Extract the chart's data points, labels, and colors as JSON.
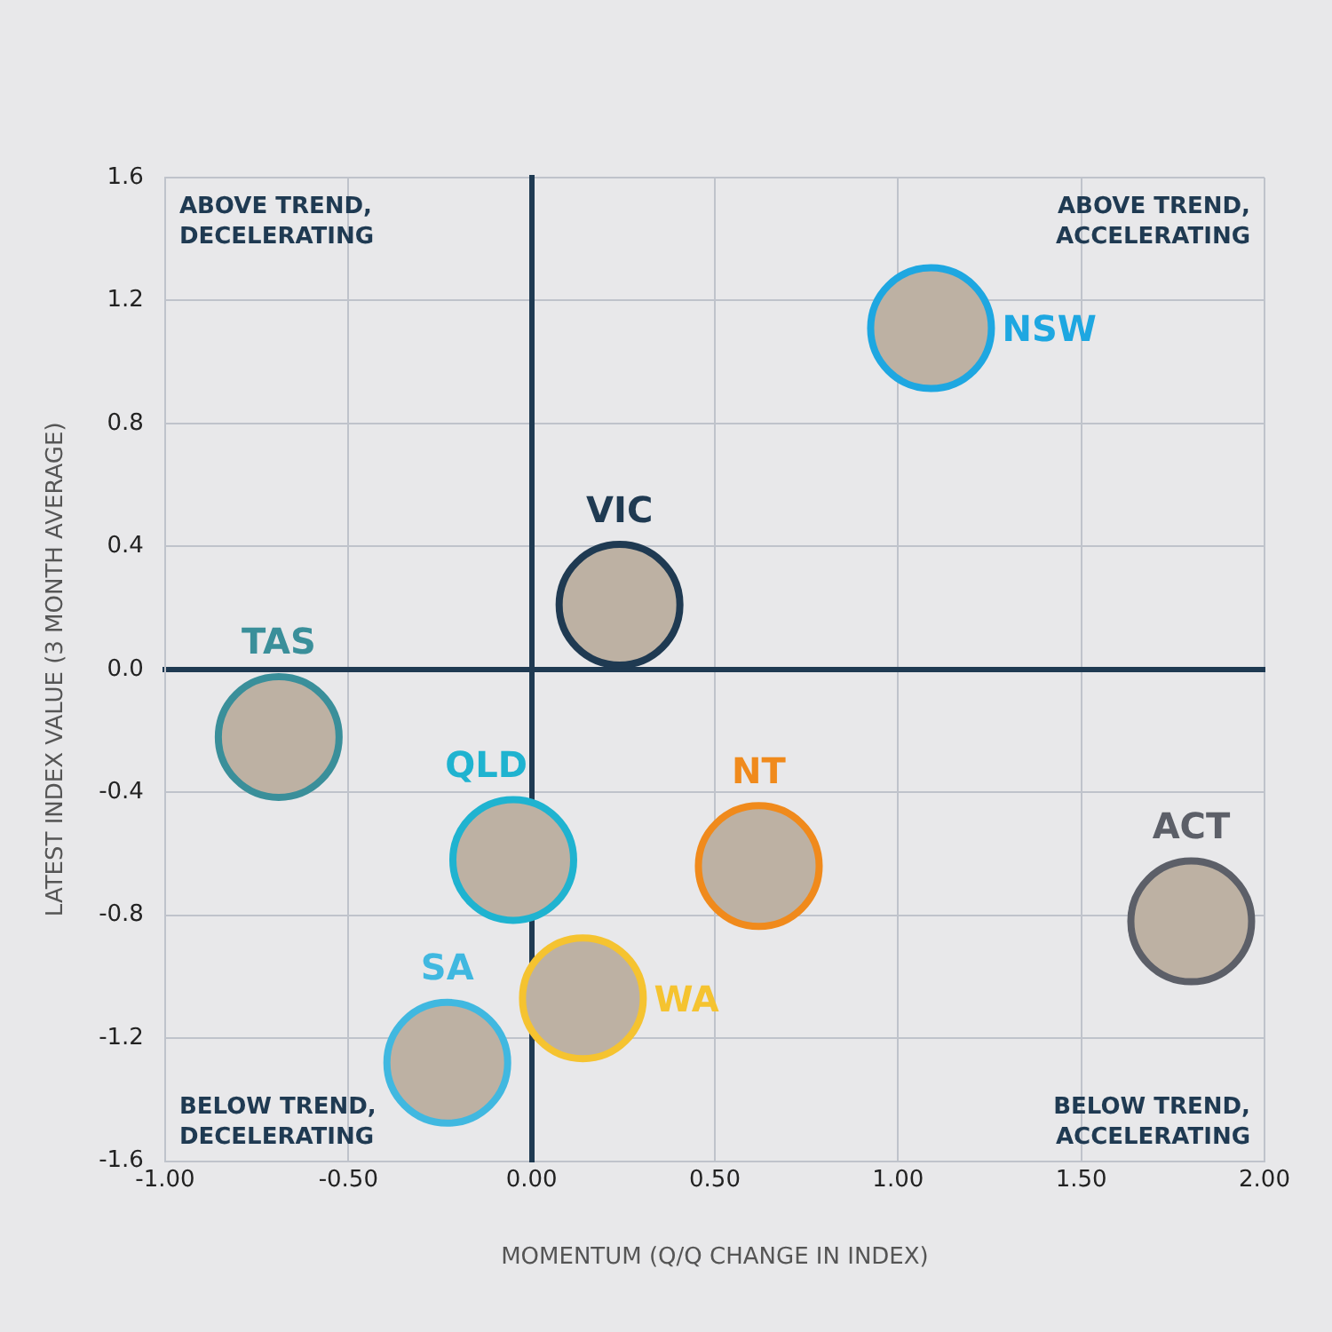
{
  "chart_data": {
    "type": "scatter",
    "xlabel": "MOMENTUM (Q/Q CHANGE IN INDEX)",
    "ylabel": "LATEST INDEX VALUE (3 MONTH AVERAGE)",
    "xlim": [
      -1,
      2
    ],
    "xticks": [
      {
        "value": -1,
        "label": "-1.00"
      },
      {
        "value": -0.5,
        "label": "-0.50"
      },
      {
        "value": 0,
        "label": "0.00"
      },
      {
        "value": 0.5,
        "label": "0.50"
      },
      {
        "value": 1,
        "label": "1.00"
      },
      {
        "value": 1.5,
        "label": "1.50"
      },
      {
        "value": 2,
        "label": "2.00"
      }
    ],
    "ylim": [
      -1.6,
      1.6
    ],
    "yticks": [
      -1.6,
      -1.2,
      -0.8,
      -0.4,
      {
        "value": 0,
        "label": "0.0"
      },
      0.4,
      0.8,
      1.2,
      1.6
    ],
    "grid": true,
    "legend": false,
    "marker": "circle",
    "annotations": [
      "ABOVE TREND,\nDECELERATING",
      "ABOVE TREND,\nACCELERATING",
      "BELOW TREND,\nDECELERATING",
      "BELOW TREND,\nACCELERATING"
    ],
    "series": [
      {
        "name": "NSW",
        "color": "#1ea7e1",
        "x": [
          1.09
        ],
        "values": [
          1.11
        ]
      },
      {
        "name": "VIC",
        "color": "#1f3a52",
        "x": [
          0.24
        ],
        "values": [
          0.21
        ]
      },
      {
        "name": "TAS",
        "color": "#3a8f9a",
        "x": [
          -0.69
        ],
        "values": [
          -0.22
        ]
      },
      {
        "name": "QLD",
        "color": "#1fb3d0",
        "x": [
          -0.05
        ],
        "values": [
          -0.62
        ]
      },
      {
        "name": "NT",
        "color": "#f08a1c",
        "x": [
          0.62
        ],
        "values": [
          -0.64
        ]
      },
      {
        "name": "ACT",
        "color": "#5c5f68",
        "x": [
          1.8
        ],
        "values": [
          -0.82
        ]
      },
      {
        "name": "WA",
        "color": "#f5c330",
        "x": [
          0.14
        ],
        "values": [
          -1.07
        ]
      },
      {
        "name": "SA",
        "color": "#40b8e0",
        "x": [
          -0.23
        ],
        "values": [
          -1.28
        ]
      }
    ]
  }
}
